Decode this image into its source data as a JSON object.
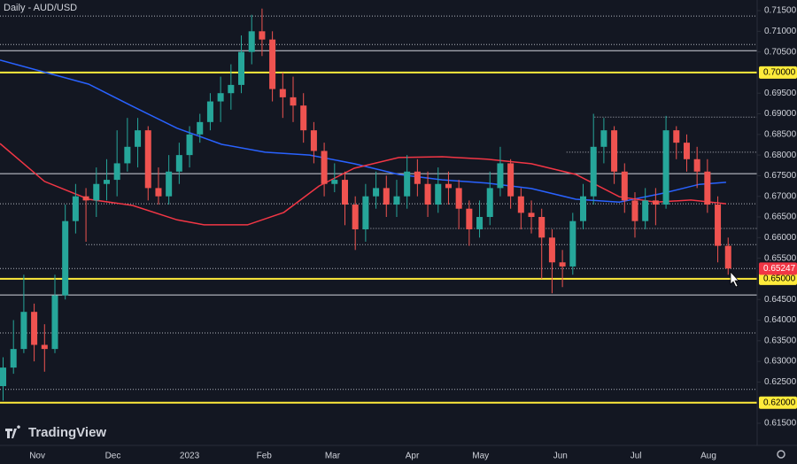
{
  "chart_data": {
    "type": "candlestick",
    "title": "Daily - AUD/USD",
    "watermark": "TradingView",
    "up_color": "#26a69a",
    "down_color": "#ef5350",
    "grid": false,
    "xlim": [
      -0.3,
      72.8
    ],
    "ylim": [
      0.61028,
      0.71758
    ],
    "xticks": [
      {
        "value": 3.3,
        "label": "Nov"
      },
      {
        "value": 10.6,
        "label": "Dec"
      },
      {
        "value": 18.0,
        "label": "2023"
      },
      {
        "value": 25.2,
        "label": "Feb"
      },
      {
        "value": 31.8,
        "label": "Mar"
      },
      {
        "value": 39.5,
        "label": "Apr"
      },
      {
        "value": 46.1,
        "label": "May"
      },
      {
        "value": 53.8,
        "label": "Jun"
      },
      {
        "value": 61.1,
        "label": "Jul"
      },
      {
        "value": 68.1,
        "label": "Aug"
      }
    ],
    "yticks": [
      {
        "value": 0.615,
        "label": "0.61500"
      },
      {
        "value": 0.625,
        "label": "0.62500"
      },
      {
        "value": 0.63,
        "label": "0.63000"
      },
      {
        "value": 0.635,
        "label": "0.63500"
      },
      {
        "value": 0.64,
        "label": "0.64000"
      },
      {
        "value": 0.645,
        "label": "0.64500"
      },
      {
        "value": 0.655,
        "label": "0.65500"
      },
      {
        "value": 0.66,
        "label": "0.66000"
      },
      {
        "value": 0.665,
        "label": "0.66500"
      },
      {
        "value": 0.67,
        "label": "0.67000"
      },
      {
        "value": 0.675,
        "label": "0.67500"
      },
      {
        "value": 0.68,
        "label": "0.68000"
      },
      {
        "value": 0.685,
        "label": "0.68500"
      },
      {
        "value": 0.69,
        "label": "0.69000"
      },
      {
        "value": 0.695,
        "label": "0.69500"
      },
      {
        "value": 0.705,
        "label": "0.70500"
      },
      {
        "value": 0.71,
        "label": "0.71000"
      },
      {
        "value": 0.715,
        "label": "0.71500"
      }
    ],
    "open": [
      0.624,
      0.6285,
      0.633,
      0.642,
      0.634,
      0.633,
      0.646,
      0.664,
      0.67,
      0.669,
      0.673,
      0.674,
      0.678,
      0.682,
      0.686,
      0.672,
      0.67,
      0.676,
      0.68,
      0.685,
      0.688,
      0.693,
      0.695,
      0.697,
      0.705,
      0.71,
      0.708,
      0.696,
      0.694,
      0.692,
      0.686,
      0.681,
      0.673,
      0.674,
      0.668,
      0.662,
      0.67,
      0.672,
      0.668,
      0.67,
      0.676,
      0.673,
      0.668,
      0.673,
      0.672,
      0.667,
      0.662,
      0.665,
      0.672,
      0.678,
      0.67,
      0.666,
      0.665,
      0.66,
      0.654,
      0.653,
      0.664,
      0.67,
      0.682,
      0.686,
      0.676,
      0.669,
      0.664,
      0.669,
      0.668,
      0.686,
      0.683,
      0.679,
      0.676,
      0.668,
      0.658
    ],
    "high": [
      0.631,
      0.64,
      0.651,
      0.644,
      0.639,
      0.651,
      0.668,
      0.673,
      0.672,
      0.677,
      0.679,
      0.686,
      0.689,
      0.689,
      0.687,
      0.677,
      0.68,
      0.683,
      0.687,
      0.69,
      0.695,
      0.699,
      0.702,
      0.709,
      0.714,
      0.7155,
      0.71,
      0.7,
      0.699,
      0.695,
      0.688,
      0.683,
      0.678,
      0.676,
      0.67,
      0.673,
      0.676,
      0.675,
      0.674,
      0.68,
      0.679,
      0.676,
      0.677,
      0.676,
      0.674,
      0.669,
      0.669,
      0.676,
      0.682,
      0.679,
      0.672,
      0.669,
      0.667,
      0.662,
      0.657,
      0.666,
      0.673,
      0.69,
      0.689,
      0.687,
      0.678,
      0.671,
      0.672,
      0.672,
      0.6895,
      0.687,
      0.685,
      0.682,
      0.679,
      0.67,
      0.66
    ],
    "low": [
      0.6205,
      0.627,
      0.632,
      0.63,
      0.6275,
      0.632,
      0.645,
      0.661,
      0.659,
      0.665,
      0.669,
      0.67,
      0.676,
      0.677,
      0.669,
      0.668,
      0.668,
      0.673,
      0.677,
      0.683,
      0.686,
      0.688,
      0.691,
      0.695,
      0.702,
      0.704,
      0.693,
      0.689,
      0.688,
      0.683,
      0.678,
      0.67,
      0.671,
      0.663,
      0.657,
      0.659,
      0.667,
      0.665,
      0.665,
      0.667,
      0.67,
      0.665,
      0.666,
      0.668,
      0.662,
      0.658,
      0.66,
      0.663,
      0.67,
      0.667,
      0.662,
      0.661,
      0.65,
      0.6465,
      0.648,
      0.651,
      0.662,
      0.668,
      0.678,
      0.673,
      0.666,
      0.66,
      0.662,
      0.663,
      0.667,
      0.679,
      0.676,
      0.672,
      0.666,
      0.654,
      0.651
    ],
    "close": [
      0.6285,
      0.633,
      0.642,
      0.634,
      0.633,
      0.646,
      0.664,
      0.67,
      0.669,
      0.673,
      0.674,
      0.678,
      0.682,
      0.686,
      0.672,
      0.67,
      0.676,
      0.68,
      0.685,
      0.688,
      0.693,
      0.695,
      0.697,
      0.705,
      0.71,
      0.708,
      0.696,
      0.694,
      0.692,
      0.686,
      0.681,
      0.673,
      0.674,
      0.668,
      0.662,
      0.67,
      0.672,
      0.668,
      0.67,
      0.676,
      0.673,
      0.668,
      0.673,
      0.672,
      0.667,
      0.662,
      0.665,
      0.672,
      0.678,
      0.67,
      0.666,
      0.665,
      0.66,
      0.654,
      0.653,
      0.664,
      0.67,
      0.682,
      0.686,
      0.676,
      0.669,
      0.664,
      0.669,
      0.668,
      0.686,
      0.683,
      0.679,
      0.676,
      0.668,
      0.658,
      0.6525
    ],
    "moving_averages": [
      {
        "color": "#2962ff",
        "x": [
          -0.3,
          8.25,
          12.5,
          16.8,
          21.1,
          25.3,
          29.6,
          33.9,
          38.2,
          42.4,
          46.7,
          51.0,
          55.3,
          59.5,
          63.8,
          67.2,
          69.8
        ],
        "values": [
          0.703,
          0.6972,
          0.6918,
          0.6865,
          0.6826,
          0.6807,
          0.68,
          0.6779,
          0.6753,
          0.674,
          0.6732,
          0.6719,
          0.6693,
          0.6686,
          0.6708,
          0.6729,
          0.6734
        ]
      },
      {
        "color": "#f23645",
        "x": [
          -0.3,
          4.0,
          8.25,
          12.5,
          16.8,
          19.4,
          23.6,
          27.1,
          30.5,
          33.9,
          38.2,
          42.4,
          46.7,
          51.0,
          55.3,
          59.5,
          63.0,
          66.4,
          69.8
        ],
        "values": [
          0.6828,
          0.6736,
          0.6693,
          0.6678,
          0.6643,
          0.6631,
          0.6631,
          0.6661,
          0.6725,
          0.6768,
          0.6794,
          0.6796,
          0.679,
          0.6779,
          0.6753,
          0.6699,
          0.6686,
          0.6691,
          0.6682
        ]
      }
    ],
    "levels": [
      {
        "value": 0.7137,
        "color": "#b2b5be",
        "dashed": true,
        "from": -0.3
      },
      {
        "value": 0.7068,
        "color": "#b2b5be",
        "dashed": true,
        "from": -0.3
      },
      {
        "value": 0.7053,
        "color": "#d1d4dc",
        "dashed": false,
        "from": -0.3
      },
      {
        "value": 0.7,
        "color": "#ffeb3b",
        "dashed": false,
        "from": -0.3,
        "label": "0.70000"
      },
      {
        "value": 0.6892,
        "color": "#b2b5be",
        "dashed": true,
        "from": 57.1
      },
      {
        "value": 0.6807,
        "color": "#b2b5be",
        "dashed": true,
        "from": 54.4
      },
      {
        "value": 0.6755,
        "color": "#d1d4dc",
        "dashed": false,
        "from": -0.3
      },
      {
        "value": 0.6682,
        "color": "#b2b5be",
        "dashed": true,
        "from": -0.3
      },
      {
        "value": 0.6622,
        "color": "#b2b5be",
        "dashed": true,
        "from": 34.7
      },
      {
        "value": 0.6583,
        "color": "#b2b5be",
        "dashed": true,
        "from": 8.0
      },
      {
        "value": 0.6525,
        "color": "#b2b5be",
        "dashed": true,
        "from": -0.3
      },
      {
        "value": 0.65,
        "color": "#ffeb3b",
        "dashed": false,
        "from": -0.3,
        "label": "0.65000"
      },
      {
        "value": 0.6461,
        "color": "#d1d4dc",
        "dashed": false,
        "from": -0.3
      },
      {
        "value": 0.6369,
        "color": "#b2b5be",
        "dashed": true,
        "from": -0.3
      },
      {
        "value": 0.6232,
        "color": "#b2b5be",
        "dashed": true,
        "from": -0.3
      },
      {
        "value": 0.62,
        "color": "#ffeb3b",
        "dashed": false,
        "from": -0.3,
        "label": "0.62000"
      }
    ],
    "last_price": {
      "value": 0.65247,
      "label": "0.65247",
      "color": "#f23645"
    }
  }
}
